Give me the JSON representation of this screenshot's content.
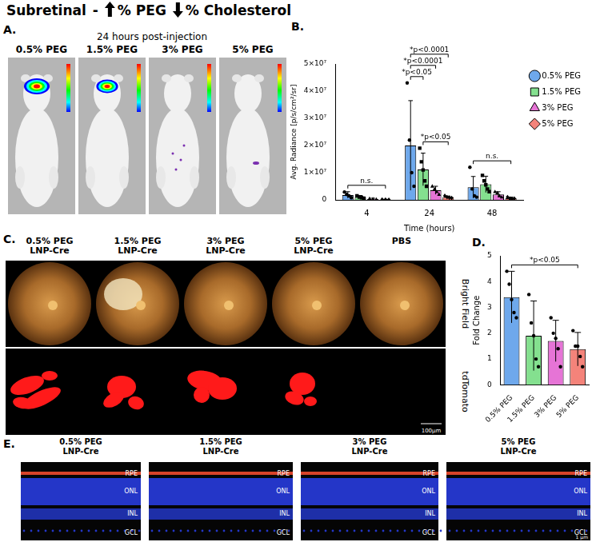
{
  "header": {
    "title": "Subretinal",
    "separator": "-",
    "up": "% PEG",
    "down": "% Cholesterol"
  },
  "panel_a": {
    "label": "A.",
    "caption": "24 hours post-injection",
    "images": [
      "0.5% PEG",
      "1.5% PEG",
      "3% PEG",
      "5% PEG"
    ]
  },
  "chart_data": [
    {
      "label": "B.",
      "type": "bar",
      "categories": [
        "4",
        "24",
        "48"
      ],
      "x_label": "Time (hours)",
      "y_label": "Avg. Radiance [p/s/cm²/sr]",
      "ylim": [
        0,
        50000000
      ],
      "yticks": [
        0,
        {
          "value": 10000000,
          "label": "1×10⁷"
        },
        {
          "value": 20000000,
          "label": "2×10⁷"
        },
        {
          "value": 30000000,
          "label": "3×10⁷"
        },
        {
          "value": 40000000,
          "label": "4×10⁷"
        },
        {
          "value": 50000000,
          "label": "5×10⁷"
        }
      ],
      "grid": false,
      "legend": "top right",
      "series": [
        {
          "name": "0.5% PEG",
          "color": "#6ea8ec",
          "marker": "circle",
          "values": [
            1800000,
            20000000,
            4600000
          ],
          "errors": [
            1200000,
            16500000,
            4000000
          ],
          "points": [
            [
              2900000,
              2000000,
              1500000,
              800000
            ],
            [
              43000000,
              22000000,
              10000000,
              5000000
            ],
            [
              12000000,
              4000000,
              1500000,
              1000000
            ]
          ]
        },
        {
          "name": "1.5% PEG",
          "color": "#84e08f",
          "marker": "square",
          "values": [
            1000000,
            11200000,
            5700000
          ],
          "errors": [
            600000,
            6000000,
            3000000
          ],
          "points": [
            [
              1500000,
              1000000,
              800000,
              600000
            ],
            [
              19000000,
              14000000,
              11000000,
              7000000,
              5000000
            ],
            [
              9000000,
              7000000,
              5500000,
              4000000,
              3000000
            ]
          ]
        },
        {
          "name": "3% PEG",
          "color": "#e674d6",
          "marker": "triangle",
          "values": [
            300000,
            3500000,
            2000000
          ],
          "errors": [
            300000,
            1500000,
            1000000
          ],
          "points": [
            [
              500000,
              300000,
              200000
            ],
            [
              5000000,
              4000000,
              3000000,
              2000000
            ],
            [
              3000000,
              2500000,
              1500000,
              1000000
            ]
          ]
        },
        {
          "name": "5% PEG",
          "color": "#f4837a",
          "marker": "diamond",
          "values": [
            100000,
            1000000,
            600000
          ],
          "errors": [
            100000,
            400000,
            400000
          ],
          "points": [
            [
              150000,
              100000,
              50000
            ],
            [
              1500000,
              1000000,
              800000,
              700000
            ],
            [
              1000000,
              500000,
              400000,
              500000
            ]
          ]
        }
      ],
      "annotations": [
        {
          "text": "*p<0.05",
          "category": "24",
          "from": "0.5% PEG",
          "to": "1.5% PEG"
        },
        {
          "text": "*p<0.0001",
          "category": "24",
          "from": "0.5% PEG",
          "to": "3% PEG"
        },
        {
          "text": "*p<0.0001",
          "category": "24",
          "from": "0.5% PEG",
          "to": "5% PEG"
        },
        {
          "text": "*p<0.05",
          "category": "24",
          "from": "1.5% PEG",
          "to": "5% PEG"
        },
        {
          "text": "n.s.",
          "category": "4",
          "from": "0.5% PEG",
          "to": "5% PEG"
        },
        {
          "text": "n.s.",
          "category": "48",
          "from": "0.5% PEG",
          "to": "5% PEG"
        }
      ]
    },
    {
      "label": "D.",
      "type": "bar",
      "categories": [
        "0.5% PEG",
        "1.5% PEG",
        "3% PEG",
        "5% PEG"
      ],
      "y_label": "Fold Change",
      "ylim": [
        0,
        5
      ],
      "yticks": [
        0,
        1,
        2,
        3,
        4,
        5
      ],
      "grid": false,
      "values": [
        3.4,
        1.9,
        1.7,
        1.38
      ],
      "errors": [
        1.0,
        1.35,
        0.8,
        0.65
      ],
      "points": [
        [
          4.4,
          3.9,
          3.3,
          2.8,
          2.6
        ],
        [
          3.5,
          2.4,
          1.9,
          1.0,
          0.7
        ],
        [
          2.6,
          2.0,
          1.8,
          1.4,
          0.7
        ],
        [
          2.1,
          1.5,
          1.5,
          1.1,
          0.7
        ]
      ],
      "colors": [
        "#6ea8ec",
        "#84e08f",
        "#e674d6",
        "#f4837a"
      ],
      "marker": "circle",
      "annotations": [
        {
          "text": "*p<0.05",
          "from": "0.5% PEG",
          "to": "5% PEG"
        }
      ]
    }
  ],
  "panel_c": {
    "label": "C.",
    "columns": [
      [
        "0.5% PEG",
        "LNP-Cre"
      ],
      [
        "1.5% PEG",
        "LNP-Cre"
      ],
      [
        "3% PEG",
        "LNP-Cre"
      ],
      [
        "5% PEG",
        "LNP-Cre"
      ],
      [
        "PBS"
      ]
    ],
    "rows": [
      "Bright Field",
      "tdTomato"
    ],
    "scale_bar": "100µm"
  },
  "panel_e": {
    "label": "E.",
    "images": [
      {
        "title": [
          "0.5% PEG",
          "LNP-Cre"
        ],
        "layers": [
          "RPE",
          "ONL",
          "INL",
          "GCL"
        ]
      },
      {
        "title": [
          "1.5% PEG",
          "LNP-Cre"
        ],
        "layers": [
          "RPE",
          "ONL",
          "INL",
          "GCL"
        ]
      },
      {
        "title": [
          "3% PEG",
          "LNP-Cre"
        ],
        "layers": [
          "RPE",
          "ONL",
          "INL",
          "GCL"
        ]
      },
      {
        "title": [
          "5% PEG",
          "LNP-Cre"
        ],
        "layers": [
          "RPE",
          "ONL",
          "INL",
          "GCL"
        ]
      }
    ],
    "scale_bar": "1 µm"
  }
}
